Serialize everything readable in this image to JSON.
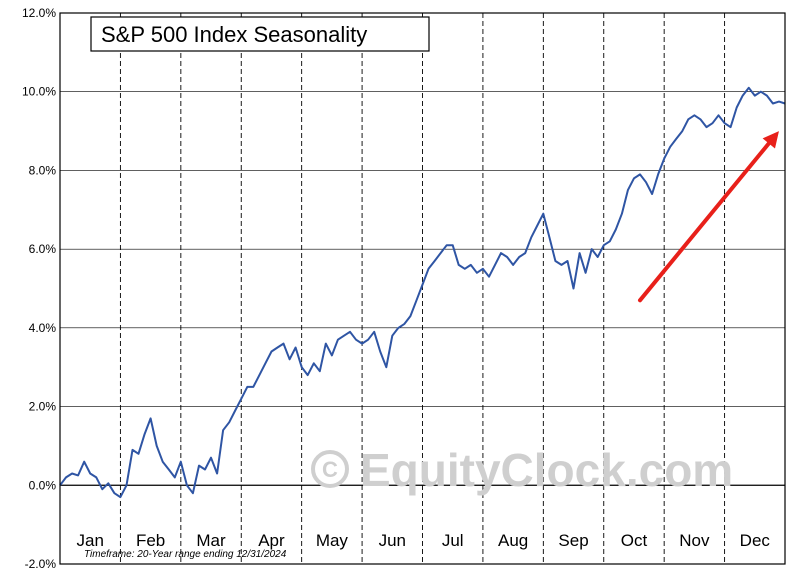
{
  "chart_data": {
    "type": "line",
    "title": "S&P 500 Index Seasonality",
    "xlabel": "",
    "ylabel": "",
    "ylim": [
      -2,
      12
    ],
    "grid": true,
    "y_tick_labels": [
      "12.0%",
      "10.0%",
      "8.0%",
      "6.0%",
      "4.0%",
      "2.0%",
      "0.0%",
      "-2.0%"
    ],
    "categories": [
      "Jan",
      "Feb",
      "Mar",
      "Apr",
      "May",
      "Jun",
      "Jul",
      "Aug",
      "Sep",
      "Oct",
      "Nov",
      "Dec"
    ],
    "timeframe_note": "Timeframe: 20-Year range ending 12/31/2024",
    "watermark": "EquityClock.com",
    "series": [
      {
        "color": "#2f55a4",
        "x": [
          0.0,
          0.1,
          0.2,
          0.3,
          0.4,
          0.5,
          0.6,
          0.7,
          0.8,
          0.9,
          1.0,
          1.1,
          1.2,
          1.3,
          1.4,
          1.5,
          1.6,
          1.7,
          1.8,
          1.9,
          2.0,
          2.1,
          2.2,
          2.3,
          2.4,
          2.5,
          2.6,
          2.7,
          2.8,
          2.9,
          3.0,
          3.1,
          3.2,
          3.3,
          3.4,
          3.5,
          3.6,
          3.7,
          3.8,
          3.9,
          4.0,
          4.1,
          4.2,
          4.3,
          4.4,
          4.5,
          4.6,
          4.7,
          4.8,
          4.9,
          5.0,
          5.1,
          5.2,
          5.3,
          5.4,
          5.5,
          5.6,
          5.7,
          5.8,
          5.9,
          6.0,
          6.1,
          6.2,
          6.3,
          6.4,
          6.5,
          6.6,
          6.7,
          6.8,
          6.9,
          7.0,
          7.1,
          7.2,
          7.3,
          7.4,
          7.5,
          7.6,
          7.7,
          7.8,
          7.9,
          8.0,
          8.1,
          8.2,
          8.3,
          8.4,
          8.5,
          8.6,
          8.7,
          8.8,
          8.9,
          9.0,
          9.1,
          9.2,
          9.3,
          9.4,
          9.5,
          9.6,
          9.7,
          9.8,
          9.9,
          10.0,
          10.1,
          10.2,
          10.3,
          10.4,
          10.5,
          10.6,
          10.7,
          10.8,
          10.9,
          11.0,
          11.1,
          11.2,
          11.3,
          11.4,
          11.5,
          11.6,
          11.7,
          11.8,
          11.9,
          12.0
        ],
        "values": [
          0.0,
          0.2,
          0.3,
          0.25,
          0.6,
          0.3,
          0.2,
          -0.1,
          0.05,
          -0.2,
          -0.3,
          0.0,
          0.9,
          0.8,
          1.3,
          1.7,
          1.0,
          0.6,
          0.4,
          0.2,
          0.6,
          0.0,
          -0.2,
          0.5,
          0.4,
          0.7,
          0.3,
          1.4,
          1.6,
          1.9,
          2.2,
          2.5,
          2.5,
          2.8,
          3.1,
          3.4,
          3.5,
          3.6,
          3.2,
          3.5,
          3.0,
          2.8,
          3.1,
          2.9,
          3.6,
          3.3,
          3.7,
          3.8,
          3.9,
          3.7,
          3.6,
          3.7,
          3.9,
          3.4,
          3.0,
          3.8,
          4.0,
          4.1,
          4.3,
          4.7,
          5.1,
          5.5,
          5.7,
          5.9,
          6.1,
          6.1,
          5.6,
          5.5,
          5.6,
          5.4,
          5.5,
          5.3,
          5.6,
          5.9,
          5.8,
          5.6,
          5.8,
          5.9,
          6.3,
          6.6,
          6.9,
          6.3,
          5.7,
          5.6,
          5.7,
          5.0,
          5.9,
          5.4,
          6.0,
          5.8,
          6.1,
          6.2,
          6.5,
          6.9,
          7.5,
          7.8,
          7.9,
          7.7,
          7.4,
          7.9,
          8.3,
          8.6,
          8.8,
          9.0,
          9.3,
          9.4,
          9.3,
          9.1,
          9.2,
          9.4,
          9.2,
          9.1,
          9.6,
          9.9,
          10.1,
          9.9,
          10.0,
          9.9,
          9.7,
          9.75,
          9.7
        ]
      }
    ],
    "annotations": [
      {
        "type": "arrow",
        "color": "#e8201a",
        "from": [
          9.6,
          4.7
        ],
        "to": [
          11.9,
          9.0
        ]
      }
    ]
  }
}
